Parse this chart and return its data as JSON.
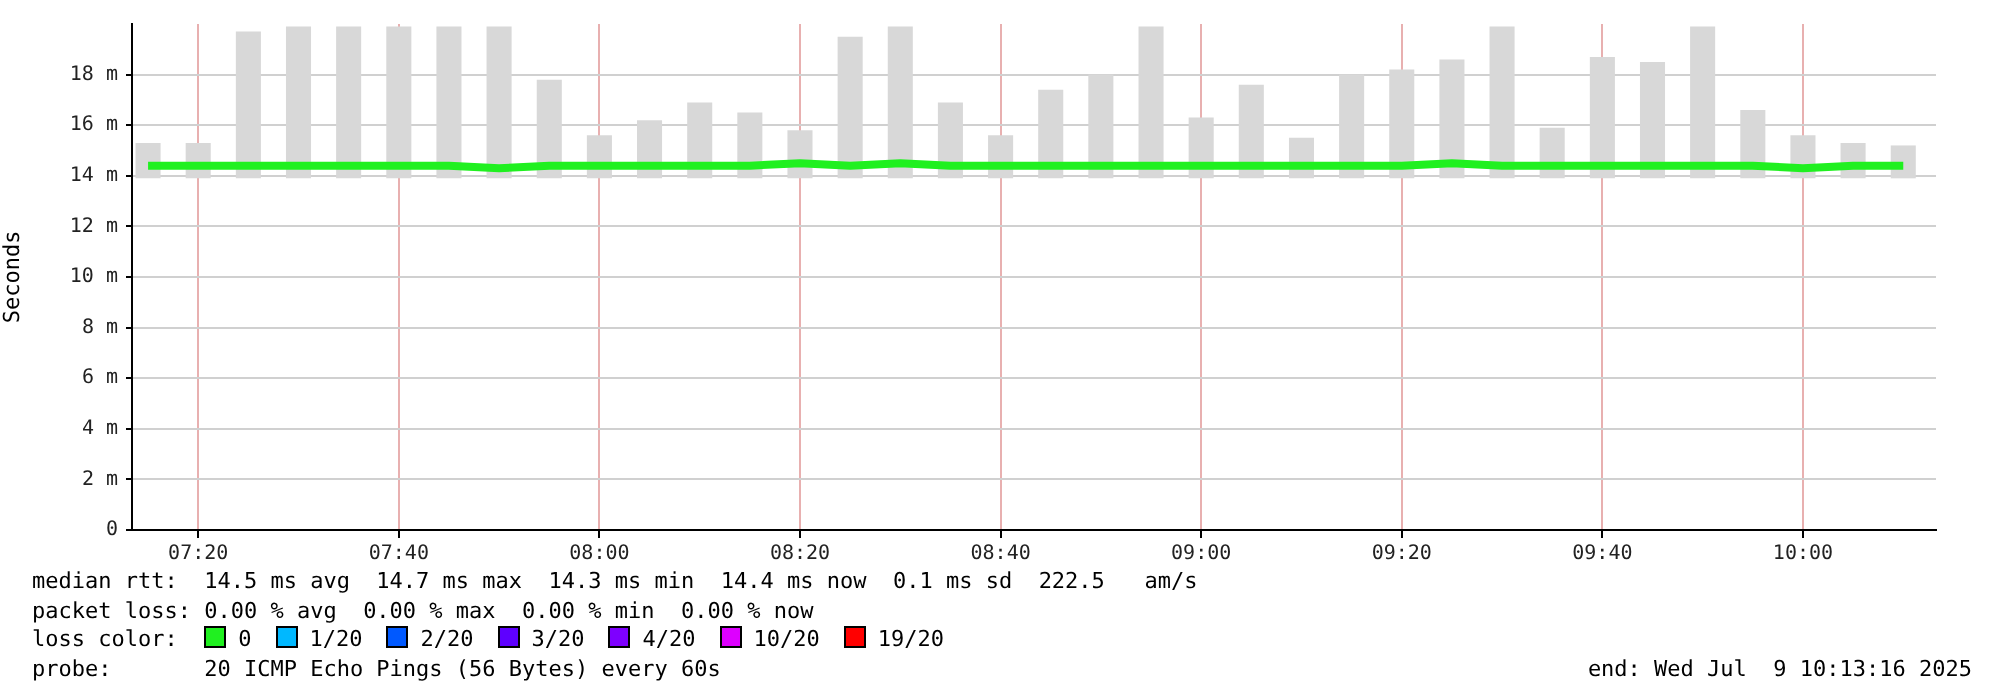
{
  "chart_data": {
    "type": "line",
    "ylabel": "Seconds",
    "legend_title": "loss color:",
    "x": [
      7.25,
      7.3333,
      7.4167,
      7.5,
      7.5833,
      7.6667,
      7.75,
      7.8333,
      7.9167,
      8.0,
      8.0833,
      8.1667,
      8.25,
      8.3333,
      8.4167,
      8.5,
      8.5833,
      8.6667,
      8.75,
      8.8333,
      8.9167,
      9.0,
      9.0833,
      9.1667,
      9.25,
      9.3333,
      9.4167,
      9.5,
      9.5833,
      9.6667,
      9.75,
      9.8333,
      9.9167,
      10.0,
      10.0833,
      10.1667
    ],
    "series": [
      {
        "type": "bar",
        "color": "#d8d8d8",
        "base": [
          13.9,
          13.9,
          13.9,
          13.9,
          13.9,
          13.9,
          13.9,
          13.9,
          13.9,
          13.9,
          13.9,
          13.9,
          13.9,
          13.9,
          13.9,
          13.9,
          13.9,
          13.9,
          13.9,
          13.9,
          13.9,
          13.9,
          13.9,
          13.9,
          13.9,
          13.9,
          13.9,
          13.9,
          13.9,
          13.9,
          13.9,
          13.9,
          13.9,
          13.9,
          13.9,
          13.9
        ],
        "values": [
          1.4,
          1.4,
          5.8,
          6.0,
          6.0,
          6.0,
          6.0,
          6.0,
          3.9,
          1.7,
          2.3,
          3.0,
          2.6,
          1.9,
          5.6,
          6.0,
          3.0,
          1.7,
          3.5,
          4.1,
          6.0,
          2.4,
          3.7,
          1.6,
          4.1,
          4.3,
          4.7,
          6.0,
          2.0,
          4.8,
          4.6,
          6.0,
          2.7,
          1.7,
          1.4,
          1.3
        ]
      },
      {
        "name": "0",
        "color": "#20f020",
        "values": [
          14.4,
          14.4,
          14.4,
          14.4,
          14.4,
          14.4,
          14.4,
          14.3,
          14.4,
          14.4,
          14.4,
          14.4,
          14.4,
          14.5,
          14.4,
          14.5,
          14.4,
          14.4,
          14.4,
          14.4,
          14.4,
          14.4,
          14.4,
          14.4,
          14.4,
          14.4,
          14.5,
          14.4,
          14.4,
          14.4,
          14.4,
          14.4,
          14.4,
          14.3,
          14.4,
          14.4
        ]
      },
      {
        "name": "1/20",
        "color": "#00b8ff",
        "values": [
          null,
          null,
          null,
          null,
          null,
          null,
          null,
          null,
          null,
          null,
          null,
          null,
          null,
          null,
          null,
          null,
          null,
          null,
          null,
          null,
          null,
          null,
          null,
          null,
          null,
          null,
          null,
          null,
          null,
          null,
          null,
          null,
          null,
          null,
          null,
          null
        ]
      },
      {
        "name": "2/20",
        "color": "#0059ff",
        "values": [
          null,
          null,
          null,
          null,
          null,
          null,
          null,
          null,
          null,
          null,
          null,
          null,
          null,
          null,
          null,
          null,
          null,
          null,
          null,
          null,
          null,
          null,
          null,
          null,
          null,
          null,
          null,
          null,
          null,
          null,
          null,
          null,
          null,
          null,
          null,
          null
        ]
      },
      {
        "name": "3/20",
        "color": "#5e00ff",
        "values": [
          null,
          null,
          null,
          null,
          null,
          null,
          null,
          null,
          null,
          null,
          null,
          null,
          null,
          null,
          null,
          null,
          null,
          null,
          null,
          null,
          null,
          null,
          null,
          null,
          null,
          null,
          null,
          null,
          null,
          null,
          null,
          null,
          null,
          null,
          null,
          null
        ]
      },
      {
        "name": "4/20",
        "color": "#7e00ff",
        "values": [
          null,
          null,
          null,
          null,
          null,
          null,
          null,
          null,
          null,
          null,
          null,
          null,
          null,
          null,
          null,
          null,
          null,
          null,
          null,
          null,
          null,
          null,
          null,
          null,
          null,
          null,
          null,
          null,
          null,
          null,
          null,
          null,
          null,
          null,
          null,
          null
        ]
      },
      {
        "name": "10/20",
        "color": "#dd00ff",
        "values": [
          null,
          null,
          null,
          null,
          null,
          null,
          null,
          null,
          null,
          null,
          null,
          null,
          null,
          null,
          null,
          null,
          null,
          null,
          null,
          null,
          null,
          null,
          null,
          null,
          null,
          null,
          null,
          null,
          null,
          null,
          null,
          null,
          null,
          null,
          null,
          null
        ]
      },
      {
        "name": "19/20",
        "color": "#ff0000",
        "values": [
          null,
          null,
          null,
          null,
          null,
          null,
          null,
          null,
          null,
          null,
          null,
          null,
          null,
          null,
          null,
          null,
          null,
          null,
          null,
          null,
          null,
          null,
          null,
          null,
          null,
          null,
          null,
          null,
          null,
          null,
          null,
          null,
          null,
          null,
          null,
          null
        ]
      }
    ],
    "xlim": [
      7.2233,
      10.2211
    ],
    "xticks": [
      {
        "value": 7.3333,
        "label": "07:20"
      },
      {
        "value": 7.6667,
        "label": "07:40"
      },
      {
        "value": 8.0,
        "label": "08:00"
      },
      {
        "value": 8.3333,
        "label": "08:20"
      },
      {
        "value": 8.6667,
        "label": "08:40"
      },
      {
        "value": 9.0,
        "label": "09:00"
      },
      {
        "value": 9.3333,
        "label": "09:20"
      },
      {
        "value": 9.6667,
        "label": "09:40"
      },
      {
        "value": 10.0,
        "label": "10:00"
      }
    ],
    "ylim": [
      0,
      20
    ],
    "yticks": [
      0,
      {
        "value": 2,
        "label": "2 m"
      },
      {
        "value": 4,
        "label": "4 m"
      },
      {
        "value": 6,
        "label": "6 m"
      },
      {
        "value": 8,
        "label": "8 m"
      },
      {
        "value": 10,
        "label": "10 m"
      },
      {
        "value": 12,
        "label": "12 m"
      },
      {
        "value": 14,
        "label": "14 m"
      },
      {
        "value": 16,
        "label": "16 m"
      },
      {
        "value": 18,
        "label": "18 m"
      }
    ],
    "grid": true,
    "legend": "bottom left",
    "marker": "none",
    "line_style": "solid",
    "annotations": [
      "median rtt:  14.5 ms avg  14.7 ms max  14.3 ms min  14.4 ms now  0.1 ms sd  222.5   am/s",
      "packet loss: 0.00 % avg  0.00 % max  0.00 % min  0.00 % now",
      "probe:       20 ICMP Echo Pings (56 Bytes) every 60s",
      "end: Wed Jul  9 10:13:16 2025"
    ]
  }
}
